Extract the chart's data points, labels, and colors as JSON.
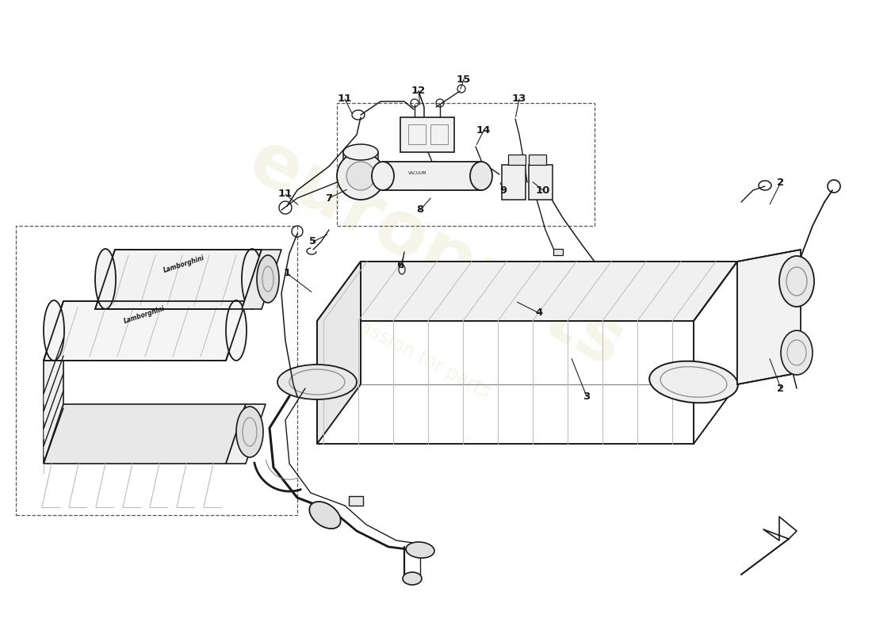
{
  "bg_color": "#ffffff",
  "lc": "#1a1a1a",
  "llc": "#888888",
  "vlc": "#bbbbbb",
  "dc": "#555555",
  "wm_color": "#eeeed8",
  "wm_alpha": 0.55,
  "label_fs": 9.5,
  "arrow_color": "#222222",
  "callouts": [
    [
      "1",
      3.62,
      4.55,
      3.95,
      4.3
    ],
    [
      "2",
      9.85,
      5.7,
      9.7,
      5.4
    ],
    [
      "2",
      9.85,
      3.1,
      9.7,
      3.5
    ],
    [
      "3",
      7.4,
      3.0,
      7.2,
      3.5
    ],
    [
      "4",
      6.8,
      4.05,
      6.5,
      4.2
    ],
    [
      "5",
      3.95,
      4.95,
      4.15,
      5.05
    ],
    [
      "6",
      5.05,
      4.65,
      5.1,
      4.78
    ],
    [
      "7",
      4.15,
      5.5,
      4.4,
      5.62
    ],
    [
      "8",
      5.3,
      5.35,
      5.45,
      5.52
    ],
    [
      "9",
      6.35,
      5.6,
      6.3,
      5.72
    ],
    [
      "10",
      6.85,
      5.6,
      6.7,
      5.72
    ],
    [
      "11",
      4.35,
      6.75,
      4.45,
      6.55
    ],
    [
      "11",
      3.6,
      5.55,
      3.78,
      5.4
    ],
    [
      "12",
      5.28,
      6.85,
      5.3,
      6.65
    ],
    [
      "13",
      6.55,
      6.75,
      6.5,
      6.5
    ],
    [
      "14",
      6.1,
      6.35,
      6.0,
      6.15
    ],
    [
      "15",
      5.85,
      7.0,
      5.8,
      6.85
    ]
  ]
}
